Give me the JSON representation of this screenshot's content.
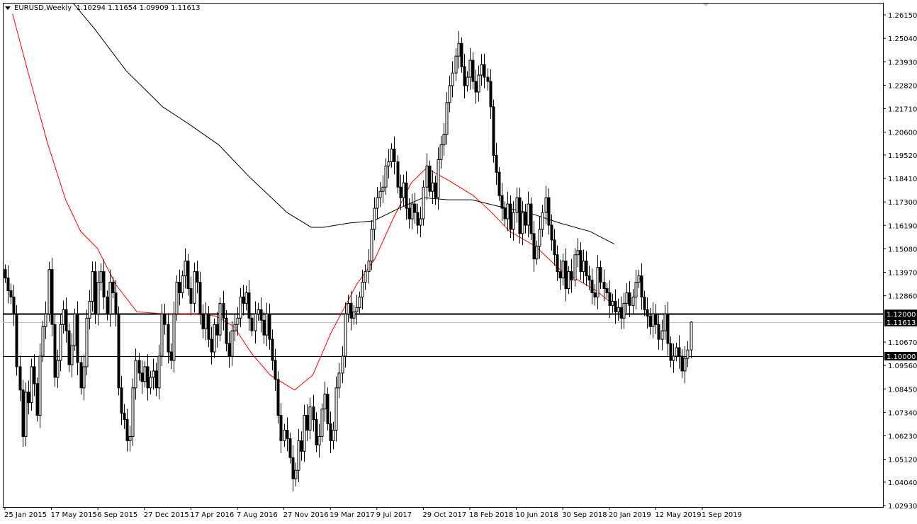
{
  "header": {
    "symbol": "EURUSD,Weekly",
    "ohlc": "1.10294 1.11654 1.09909 1.11613"
  },
  "chart_data": {
    "type": "candlestick",
    "timeframe": "weekly",
    "start_date": "2015-01-25",
    "ylim": [
      1.0293,
      1.2615
    ],
    "y_ticks": [
      "1.26150",
      "1.25040",
      "1.23930",
      "1.22820",
      "1.21710",
      "1.20600",
      "1.19520",
      "1.18410",
      "1.17300",
      "1.16190",
      "1.15080",
      "1.13970",
      "1.12860",
      "1.10670",
      "1.09560",
      "1.08450",
      "1.07340",
      "1.06230",
      "1.05120",
      "1.04040",
      "1.02930"
    ],
    "x_ticks": [
      "25 Jan 2015",
      "17 May 2015",
      "6 Sep 2015",
      "27 Dec 2015",
      "17 Apr 2016",
      "7 Aug 2016",
      "27 Nov 2016",
      "19 Mar 2017",
      "9 Jul 2017",
      "29 Oct 2017",
      "18 Feb 2018",
      "10 Jun 2018",
      "30 Sep 2018",
      "20 Jan 2019",
      "12 May 2019",
      "1 Sep 2019"
    ],
    "closes": [
      1.137,
      1.131,
      1.128,
      1.12,
      1.095,
      1.084,
      1.062,
      1.083,
      1.078,
      1.095,
      1.087,
      1.072,
      1.1,
      1.114,
      1.12,
      1.141,
      1.115,
      1.09,
      1.098,
      1.115,
      1.122,
      1.112,
      1.096,
      1.105,
      1.12,
      1.097,
      1.085,
      1.095,
      1.118,
      1.126,
      1.14,
      1.12,
      1.135,
      1.14,
      1.128,
      1.12,
      1.135,
      1.13,
      1.12,
      1.085,
      1.073,
      1.07,
      1.06,
      1.062,
      1.085,
      1.098,
      1.092,
      1.088,
      1.095,
      1.085,
      1.09,
      1.093,
      1.085,
      1.1,
      1.12,
      1.115,
      1.102,
      1.098,
      1.12,
      1.135,
      1.13,
      1.138,
      1.145,
      1.132,
      1.125,
      1.14,
      1.135,
      1.12,
      1.113,
      1.12,
      1.108,
      1.102,
      1.115,
      1.11,
      1.125,
      1.118,
      1.106,
      1.1,
      1.112,
      1.115,
      1.118,
      1.128,
      1.125,
      1.13,
      1.118,
      1.112,
      1.12,
      1.122,
      1.117,
      1.11,
      1.12,
      1.108,
      1.098,
      1.089,
      1.072,
      1.06,
      1.065,
      1.061,
      1.052,
      1.042,
      1.046,
      1.06,
      1.055,
      1.072,
      1.065,
      1.076,
      1.07,
      1.058,
      1.062,
      1.075,
      1.082,
      1.068,
      1.06,
      1.065,
      1.085,
      1.092,
      1.1,
      1.12,
      1.125,
      1.118,
      1.121,
      1.123,
      1.128,
      1.135,
      1.14,
      1.145,
      1.16,
      1.17,
      1.175,
      1.178,
      1.18,
      1.19,
      1.192,
      1.198,
      1.192,
      1.18,
      1.175,
      1.182,
      1.17,
      1.165,
      1.172,
      1.168,
      1.162,
      1.165,
      1.18,
      1.19,
      1.178,
      1.182,
      1.175,
      1.193,
      1.2,
      1.205,
      1.22,
      1.228,
      1.234,
      1.242,
      1.248,
      1.237,
      1.228,
      1.232,
      1.24,
      1.23,
      1.225,
      1.233,
      1.238,
      1.232,
      1.23,
      1.218,
      1.195,
      1.187,
      1.176,
      1.17,
      1.165,
      1.172,
      1.16,
      1.168,
      1.175,
      1.158,
      1.168,
      1.162,
      1.172,
      1.158,
      1.146,
      1.152,
      1.16,
      1.168,
      1.175,
      1.162,
      1.155,
      1.148,
      1.14,
      1.137,
      1.145,
      1.132,
      1.14,
      1.136,
      1.148,
      1.15,
      1.14,
      1.145,
      1.138,
      1.136,
      1.13,
      1.128,
      1.142,
      1.135,
      1.132,
      1.13,
      1.124,
      1.126,
      1.121,
      1.123,
      1.118,
      1.125,
      1.13,
      1.124,
      1.128,
      1.135,
      1.138,
      1.128,
      1.122,
      1.119,
      1.114,
      1.12,
      1.115,
      1.108,
      1.112,
      1.12,
      1.106,
      1.098,
      1.1,
      1.104,
      1.1,
      1.093,
      1.099,
      1.10294,
      1.11613
    ],
    "moving_averages": [
      {
        "color": "#ff0000",
        "points": [
          [
            0.05,
            1.262
          ],
          [
            0.15,
            1.235
          ],
          [
            0.28,
            1.201
          ],
          [
            0.4,
            1.174
          ],
          [
            0.5,
            1.159
          ],
          [
            0.61,
            1.151
          ],
          [
            0.73,
            1.134
          ],
          [
            0.87,
            1.121
          ],
          [
            1.06,
            1.12
          ],
          [
            1.22,
            1.12
          ],
          [
            1.39,
            1.119
          ],
          [
            1.51,
            1.114
          ],
          [
            1.63,
            1.101
          ],
          [
            1.75,
            1.091
          ],
          [
            1.91,
            1.084
          ],
          [
            2.03,
            1.091
          ],
          [
            2.15,
            1.111
          ],
          [
            2.32,
            1.134
          ],
          [
            2.44,
            1.146
          ],
          [
            2.56,
            1.165
          ],
          [
            2.68,
            1.182
          ],
          [
            2.78,
            1.189
          ],
          [
            2.93,
            1.183
          ],
          [
            3.09,
            1.176
          ],
          [
            3.21,
            1.168
          ],
          [
            3.33,
            1.159
          ],
          [
            3.5,
            1.152
          ],
          [
            3.66,
            1.141
          ],
          [
            3.78,
            1.136
          ],
          [
            3.9,
            1.131
          ],
          [
            4.02,
            1.124
          ]
        ]
      },
      {
        "color": "#000000",
        "points": [
          [
            0.45,
            1.267
          ],
          [
            0.59,
            1.255
          ],
          [
            0.8,
            1.235
          ],
          [
            1.04,
            1.218
          ],
          [
            1.21,
            1.21
          ],
          [
            1.41,
            1.2
          ],
          [
            1.61,
            1.185
          ],
          [
            1.86,
            1.168
          ],
          [
            2.02,
            1.161
          ],
          [
            2.1,
            1.161
          ],
          [
            2.27,
            1.163
          ],
          [
            2.43,
            1.164
          ],
          [
            2.6,
            1.17
          ],
          [
            2.76,
            1.175
          ],
          [
            2.92,
            1.174
          ],
          [
            3.08,
            1.174
          ],
          [
            3.25,
            1.171
          ],
          [
            3.45,
            1.168
          ],
          [
            3.66,
            1.163
          ],
          [
            3.86,
            1.159
          ],
          [
            4.02,
            1.153
          ]
        ]
      }
    ],
    "horizontal_lines": [
      {
        "price": 1.12,
        "label": "1.12000",
        "color": "#000000",
        "style": "thick"
      },
      {
        "price": 1.1,
        "label": "1.10000",
        "color": "#000000",
        "style": "thin"
      },
      {
        "price": 1.11613,
        "label": "1.11613",
        "color": "#c0c0c0",
        "style": "bid"
      }
    ]
  }
}
